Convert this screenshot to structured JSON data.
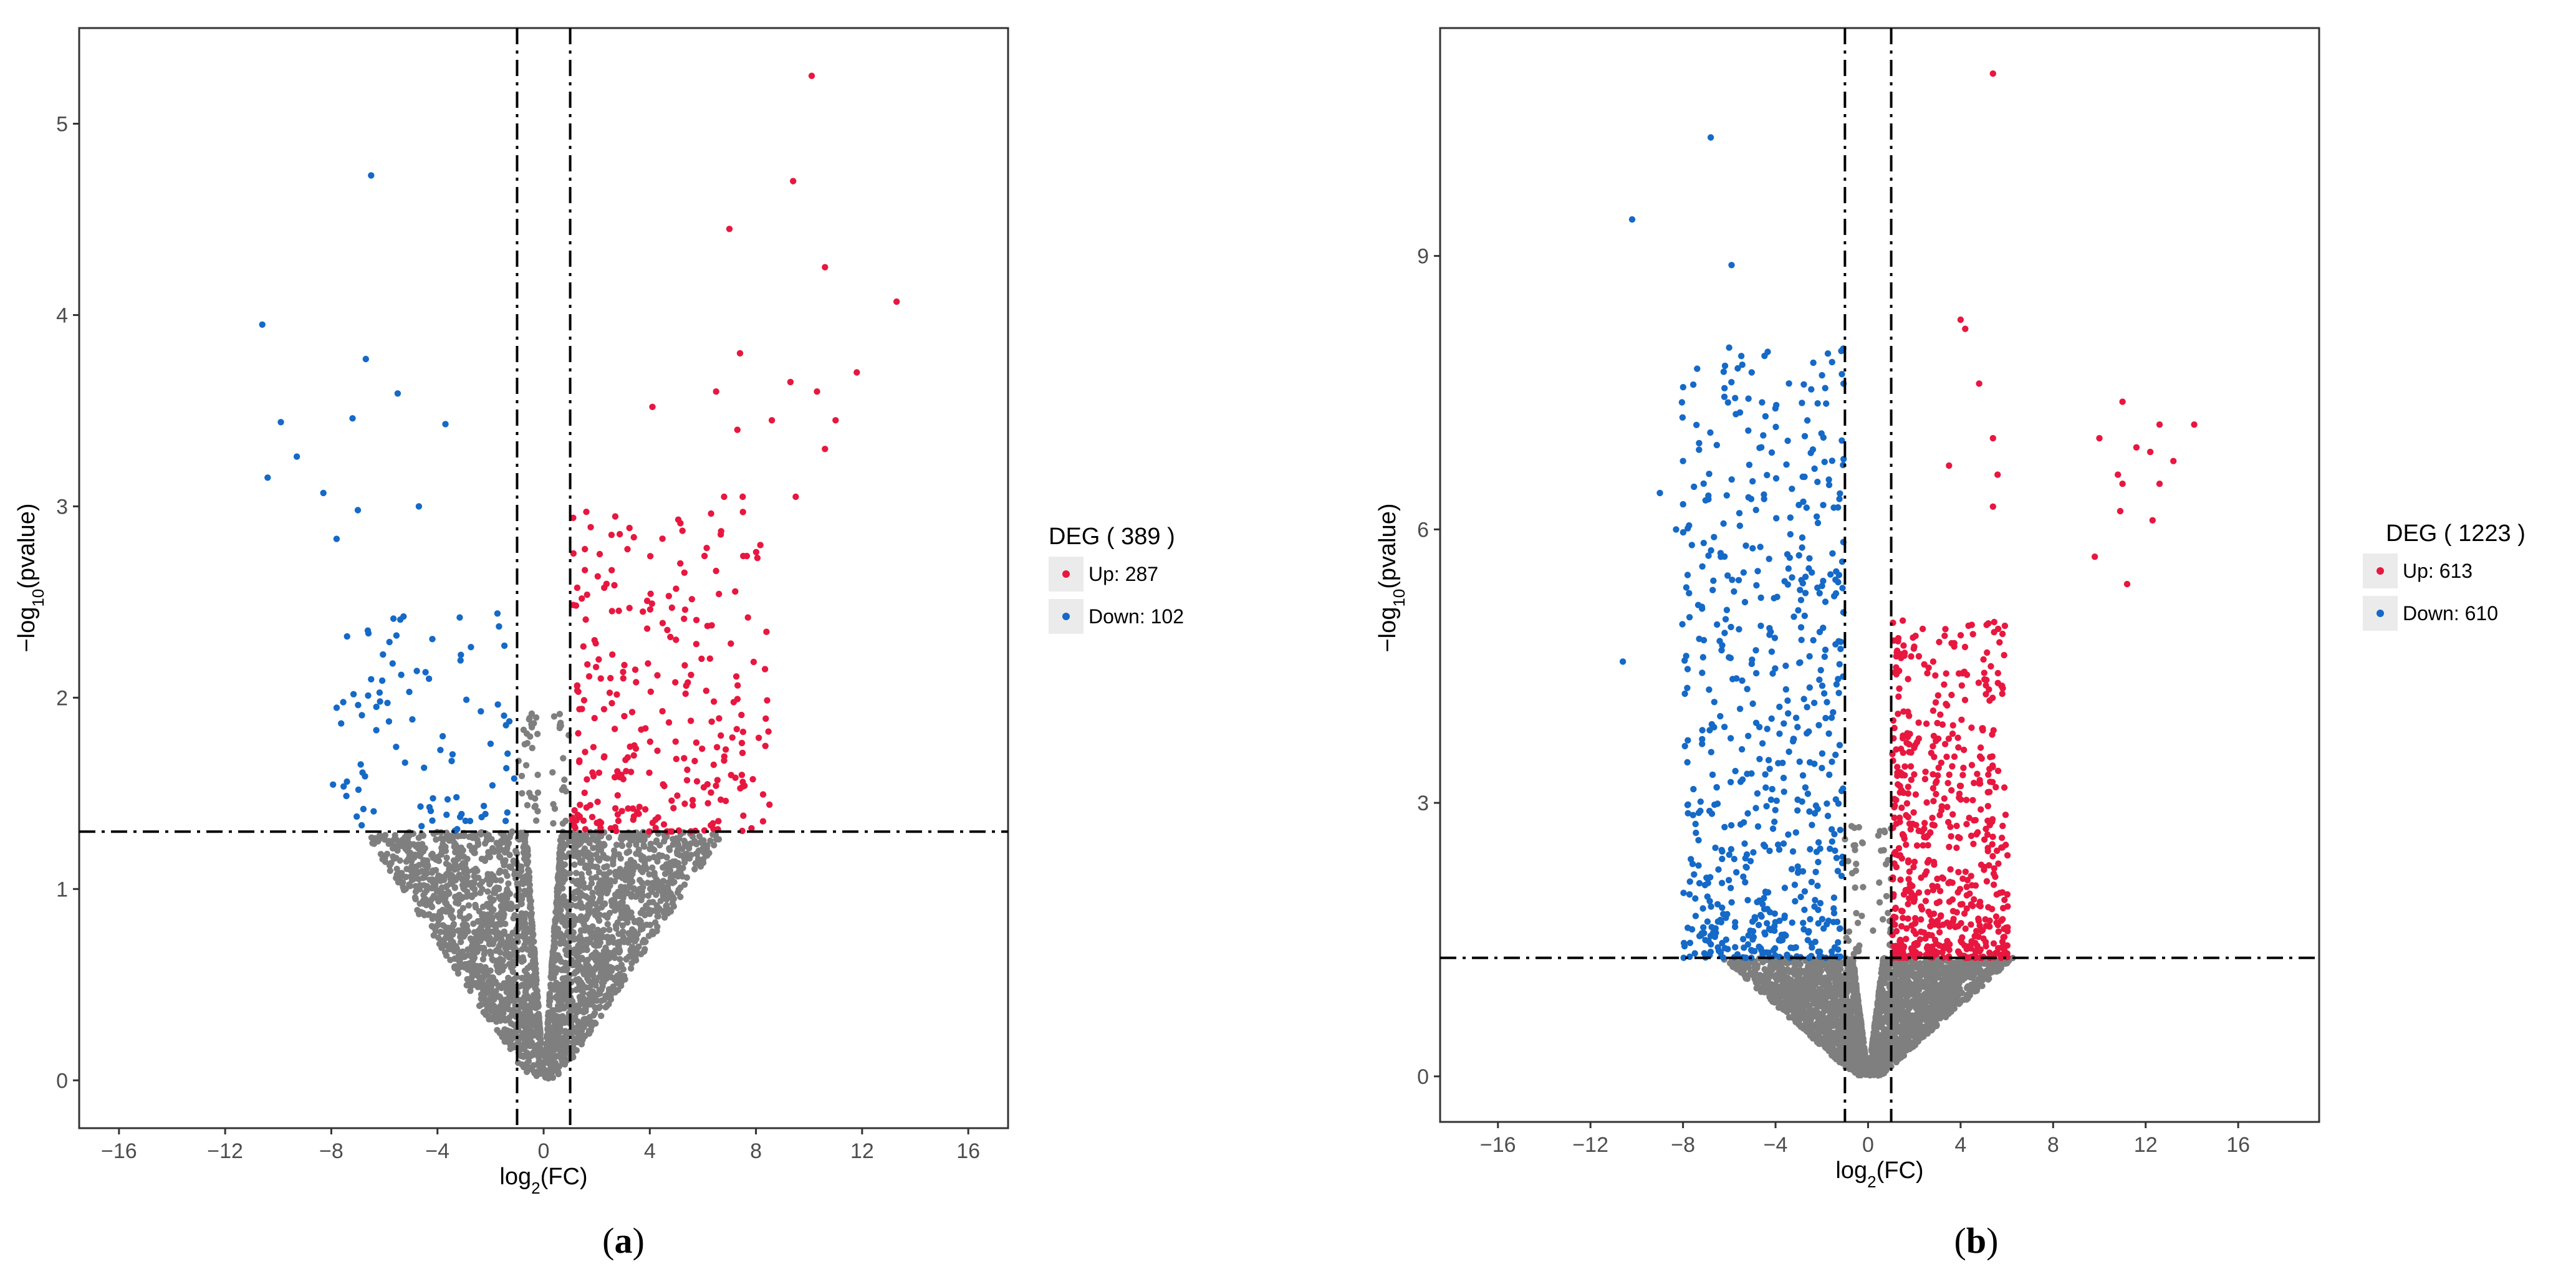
{
  "colors": {
    "up": "#e8173f",
    "down": "#1569c7",
    "nosig": "#7f7f7f",
    "threshold_line": "#000000"
  },
  "chart_data": [
    {
      "type": "scatter",
      "subtype": "volcano",
      "panel_label": "a",
      "xlabel_main": "log",
      "xlabel_sub": "2",
      "xlabel_tail": "(FC)",
      "ylabel_pre": "−log",
      "ylabel_sub": "10",
      "ylabel_tail": "(pvalue)",
      "xlim": [
        -17.5,
        17.5
      ],
      "ylim": [
        -0.25,
        5.5
      ],
      "xticks": [
        -16,
        -12,
        -8,
        -4,
        0,
        4,
        8,
        12,
        16
      ],
      "xtick_labels": [
        "−16",
        "−12",
        "−8",
        "−4",
        "0",
        "4",
        "8",
        "12",
        "16"
      ],
      "yticks": [
        0,
        1,
        2,
        3,
        4,
        5
      ],
      "ytick_labels": [
        "0",
        "1",
        "2",
        "3",
        "4",
        "5"
      ],
      "thresholds": {
        "fc": [
          -1,
          1
        ],
        "p": 1.3
      },
      "legend": {
        "title": "DEG ( 389 )",
        "entries": [
          {
            "label": "Up: 287",
            "color": "#e8173f"
          },
          {
            "label": "Down: 102",
            "color": "#1569c7"
          }
        ]
      },
      "counts": {
        "up": 287,
        "down": 102
      },
      "spread": {
        "xmax_up": 8.5,
        "xmax_down": 8.0,
        "ymax_up": 3.0,
        "ymax_down": 2.5,
        "xmax_ns": 6.5
      },
      "labeled_outliers_up": [
        [
          10.1,
          5.25
        ],
        [
          9.4,
          4.7
        ],
        [
          10.6,
          4.25
        ],
        [
          13.3,
          4.07
        ],
        [
          7.0,
          4.45
        ],
        [
          7.4,
          3.8
        ],
        [
          11.8,
          3.7
        ],
        [
          9.3,
          3.65
        ],
        [
          10.3,
          3.6
        ],
        [
          4.1,
          3.52
        ],
        [
          6.5,
          3.6
        ],
        [
          11.0,
          3.45
        ],
        [
          8.6,
          3.45
        ],
        [
          10.6,
          3.3
        ],
        [
          7.3,
          3.4
        ],
        [
          9.5,
          3.05
        ],
        [
          7.5,
          3.05
        ],
        [
          6.8,
          3.05
        ]
      ],
      "labeled_outliers_down": [
        [
          -6.5,
          4.73
        ],
        [
          -10.6,
          3.95
        ],
        [
          -6.7,
          3.77
        ],
        [
          -5.5,
          3.59
        ],
        [
          -9.9,
          3.44
        ],
        [
          -7.2,
          3.46
        ],
        [
          -3.7,
          3.43
        ],
        [
          -9.3,
          3.26
        ],
        [
          -10.4,
          3.15
        ],
        [
          -8.3,
          3.07
        ],
        [
          -4.7,
          3.0
        ],
        [
          -7.0,
          2.98
        ],
        [
          -7.8,
          2.83
        ]
      ]
    },
    {
      "type": "scatter",
      "subtype": "volcano",
      "panel_label": "b",
      "xlabel_main": "log",
      "xlabel_sub": "2",
      "xlabel_tail": "(FC)",
      "ylabel_pre": "−log",
      "ylabel_sub": "10",
      "ylabel_tail": "(pvalue)",
      "xlim": [
        -18.5,
        19.5
      ],
      "ylim": [
        -0.5,
        11.5
      ],
      "xticks": [
        -16,
        -12,
        -8,
        -4,
        0,
        4,
        8,
        12,
        16
      ],
      "xtick_labels": [
        "−16",
        "−12",
        "−8",
        "−4",
        "0",
        "4",
        "8",
        "12",
        "16"
      ],
      "yticks": [
        0,
        3,
        6,
        9
      ],
      "ytick_labels": [
        "0",
        "3",
        "6",
        "9"
      ],
      "thresholds": {
        "fc": [
          -1,
          1
        ],
        "p": 1.3
      },
      "legend": {
        "title": "DEG ( 1223 )",
        "entries": [
          {
            "label": "Up: 613",
            "color": "#e8173f"
          },
          {
            "label": "Down: 610",
            "color": "#1569c7"
          }
        ]
      },
      "counts": {
        "up": 613,
        "down": 610
      },
      "spread": {
        "xmax_up": 6.0,
        "xmax_down": 8.0,
        "ymax_up": 5.0,
        "ymax_down": 8.0,
        "xmax_ns": 6.0
      },
      "labeled_outliers_up": [
        [
          5.4,
          11.0
        ],
        [
          4.0,
          8.3
        ],
        [
          4.2,
          8.2
        ],
        [
          4.8,
          7.6
        ],
        [
          5.4,
          7.0
        ],
        [
          5.6,
          6.6
        ],
        [
          5.4,
          6.25
        ],
        [
          3.5,
          6.7
        ],
        [
          11.0,
          7.4
        ],
        [
          12.6,
          7.15
        ],
        [
          14.1,
          7.15
        ],
        [
          10.0,
          7.0
        ],
        [
          11.6,
          6.9
        ],
        [
          12.2,
          6.85
        ],
        [
          13.2,
          6.75
        ],
        [
          10.8,
          6.6
        ],
        [
          11.0,
          6.5
        ],
        [
          12.6,
          6.5
        ],
        [
          10.9,
          6.2
        ],
        [
          12.3,
          6.1
        ],
        [
          11.2,
          5.4
        ],
        [
          9.8,
          5.7
        ]
      ],
      "labeled_outliers_down": [
        [
          -6.8,
          10.3
        ],
        [
          -10.2,
          9.4
        ],
        [
          -5.9,
          8.9
        ],
        [
          -8.0,
          6.75
        ],
        [
          -9.0,
          6.4
        ],
        [
          -10.6,
          4.55
        ],
        [
          -8.3,
          6.0
        ],
        [
          -7.8,
          5.5
        ],
        [
          -7.3,
          4.8
        ]
      ]
    }
  ]
}
